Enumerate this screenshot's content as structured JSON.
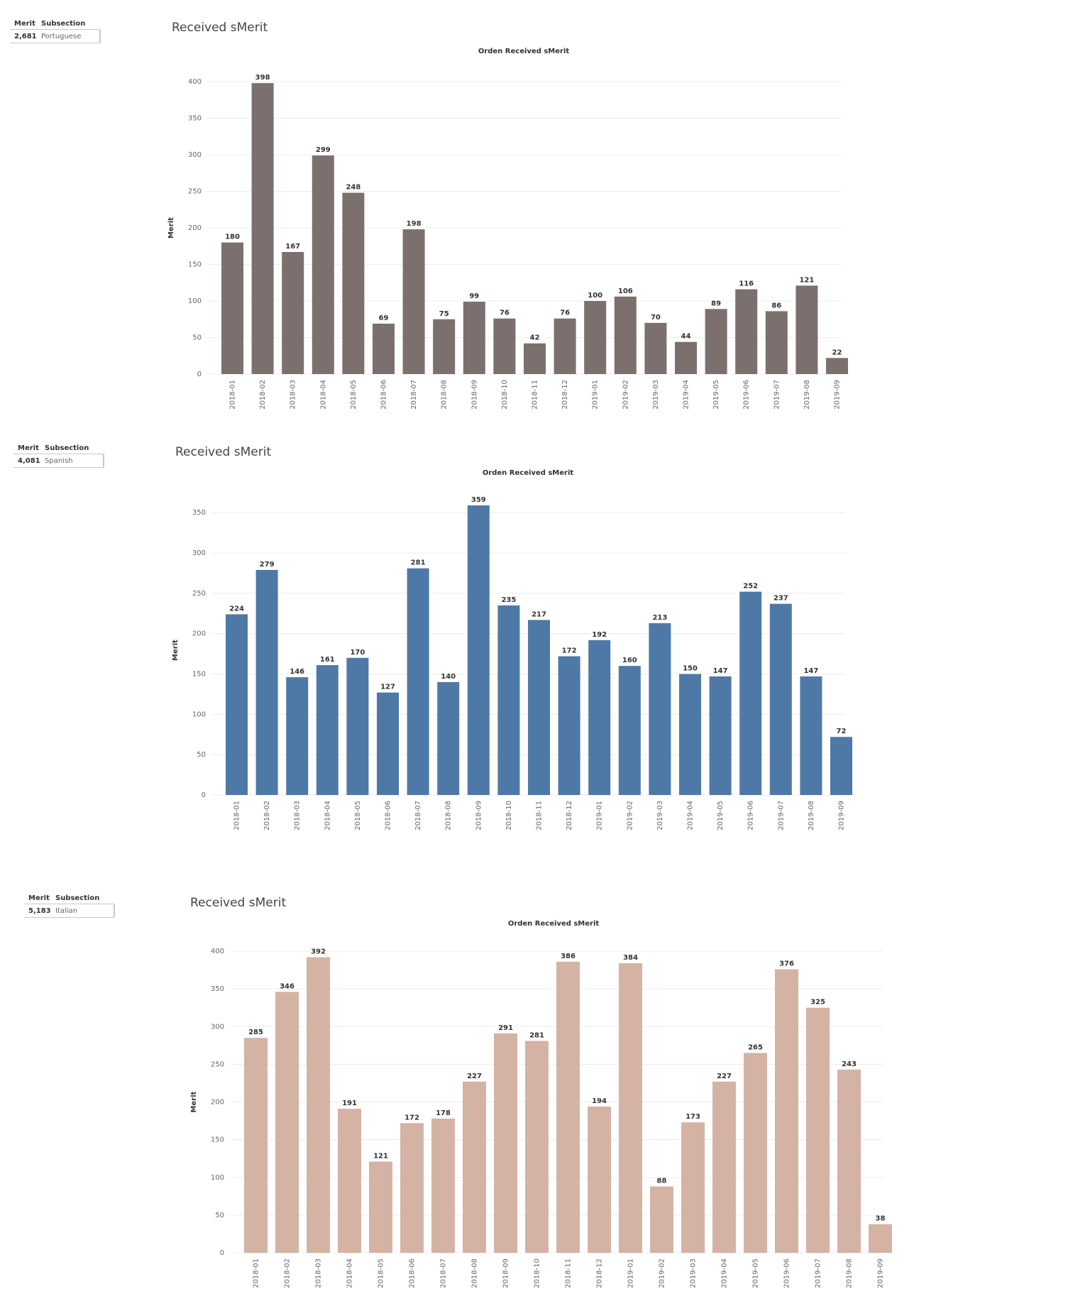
{
  "panels": [
    {
      "summary": {
        "col1_header": "Merit",
        "col2_header": "Subsection",
        "merit": "2,681",
        "subsection": "Portuguese"
      },
      "sheet_title": "Received sMerit"
    },
    {
      "summary": {
        "col1_header": "Merit",
        "col2_header": "Subsection",
        "merit": "4,081",
        "subsection": "Spanish"
      },
      "sheet_title": "Received sMerit"
    },
    {
      "summary": {
        "col1_header": "Merit",
        "col2_header": "Subsection",
        "merit": "5,183",
        "subsection": "Italian"
      },
      "sheet_title": "Received sMerit"
    }
  ],
  "chart_data": [
    {
      "type": "bar",
      "title": "Orden Received sMerit",
      "xlabel": "",
      "ylabel": "Merit",
      "ylim": [
        0,
        400
      ],
      "yticks": [
        0,
        50,
        100,
        150,
        200,
        250,
        300,
        350,
        400
      ],
      "color": "#7b706d",
      "grid": true,
      "categories": [
        "2018-01",
        "2018-02",
        "2018-03",
        "2018-04",
        "2018-05",
        "2018-06",
        "2018-07",
        "2018-08",
        "2018-09",
        "2018-10",
        "2018-11",
        "2018-12",
        "2019-01",
        "2019-02",
        "2019-03",
        "2019-04",
        "2019-05",
        "2019-06",
        "2019-07",
        "2019-08",
        "2019-09"
      ],
      "values": [
        180,
        398,
        167,
        299,
        248,
        69,
        198,
        75,
        99,
        76,
        42,
        76,
        100,
        106,
        70,
        44,
        89,
        116,
        86,
        121,
        22
      ]
    },
    {
      "type": "bar",
      "title": "Orden Received sMerit",
      "xlabel": "",
      "ylabel": "Merit",
      "ylim": [
        0,
        359
      ],
      "yticks": [
        0,
        50,
        100,
        150,
        200,
        250,
        300,
        350
      ],
      "color": "#4e79a7",
      "grid": true,
      "categories": [
        "2018-01",
        "2018-02",
        "2018-03",
        "2018-04",
        "2018-05",
        "2018-06",
        "2018-07",
        "2018-08",
        "2018-09",
        "2018-10",
        "2018-11",
        "2018-12",
        "2019-01",
        "2019-02",
        "2019-03",
        "2019-04",
        "2019-05",
        "2019-06",
        "2019-07",
        "2019-08",
        "2019-09"
      ],
      "values": [
        224,
        279,
        146,
        161,
        170,
        127,
        281,
        140,
        359,
        235,
        217,
        172,
        192,
        160,
        213,
        150,
        147,
        252,
        237,
        147,
        72
      ]
    },
    {
      "type": "bar",
      "title": "Orden Received sMerit",
      "xlabel": "",
      "ylabel": "Merit",
      "ylim": [
        0,
        400
      ],
      "yticks": [
        0,
        50,
        100,
        150,
        200,
        250,
        300,
        350,
        400
      ],
      "color": "#d4b3a5",
      "grid": true,
      "categories": [
        "2018-01",
        "2018-02",
        "2018-03",
        "2018-04",
        "2018-05",
        "2018-06",
        "2018-07",
        "2018-08",
        "2018-09",
        "2018-10",
        "2018-11",
        "2018-12",
        "2019-01",
        "2019-02",
        "2019-03",
        "2019-04",
        "2019-05",
        "2019-06",
        "2019-07",
        "2019-08",
        "2019-09"
      ],
      "values": [
        285,
        346,
        392,
        191,
        121,
        172,
        178,
        227,
        291,
        281,
        386,
        194,
        384,
        88,
        173,
        227,
        265,
        376,
        325,
        243,
        38
      ]
    }
  ]
}
